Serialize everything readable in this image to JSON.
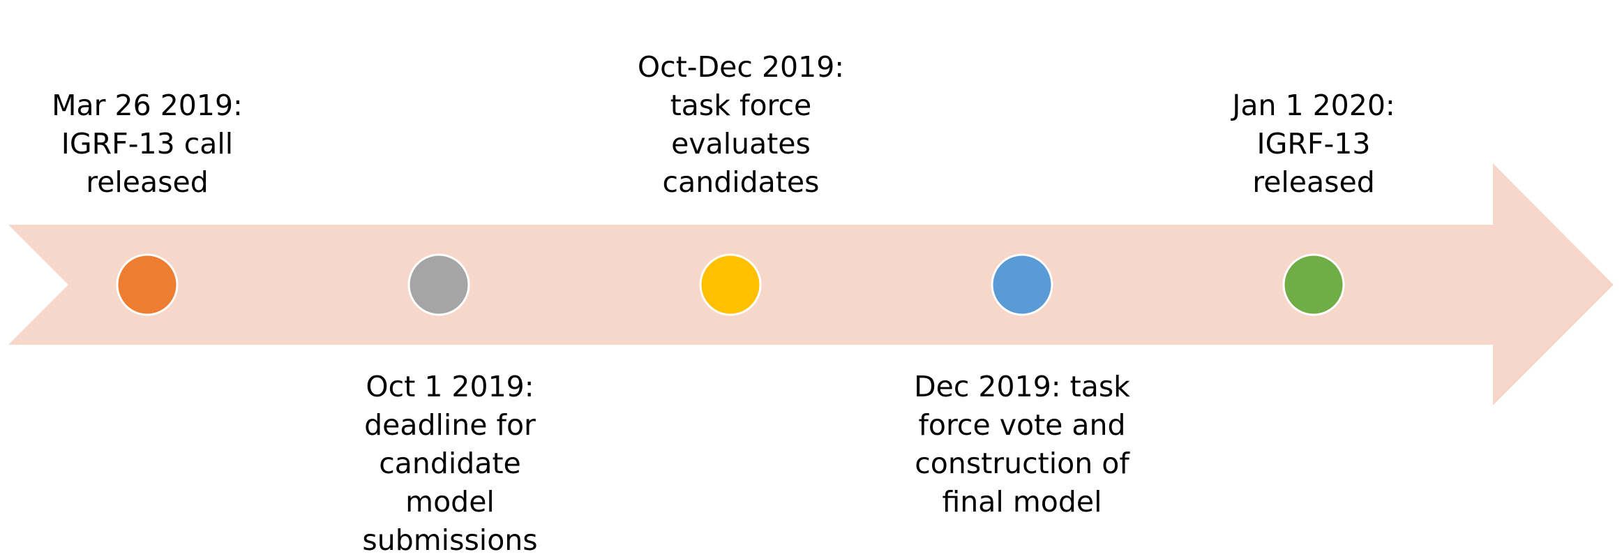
{
  "events": [
    {
      "lines": [
        "Mar 26 2019:",
        "IGRF-13 call",
        "released"
      ],
      "color": "#ED7D31"
    },
    {
      "lines": [
        "Oct 1 2019:",
        "deadline for",
        "candidate",
        "model",
        "submissions"
      ],
      "color": "#A5A5A5"
    },
    {
      "lines": [
        "Oct-Dec 2019:",
        "task force",
        "evaluates",
        "candidates"
      ],
      "color": "#FFC000"
    },
    {
      "lines": [
        "Dec 2019: task",
        "force vote and",
        "construction of",
        "final model"
      ],
      "color": "#5B9BD5"
    },
    {
      "lines": [
        "Jan 1 2020:",
        "IGRF-13",
        "released"
      ],
      "color": "#70AD47"
    }
  ]
}
